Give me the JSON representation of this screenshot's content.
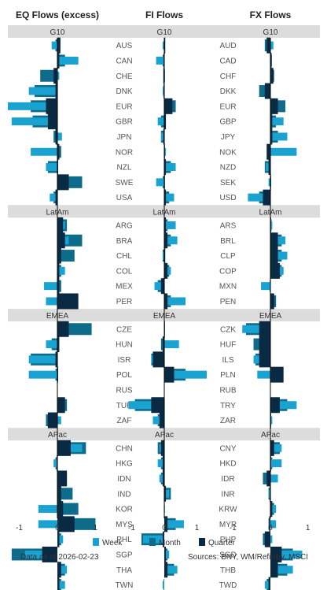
{
  "chart_data": {
    "type": "bar",
    "orientation": "horizontal",
    "panels": [
      {
        "title": "EQ Flows (excess)",
        "xlim": [
          -1.3,
          1.3
        ],
        "xticks": [
          -1,
          0,
          1
        ]
      },
      {
        "title": "FI Flows",
        "xlim": [
          -1.3,
          1.3
        ],
        "xticks": [
          -1,
          0,
          1
        ]
      },
      {
        "title": "FX Flows",
        "xlim": [
          -1.3,
          1.3
        ],
        "xticks": [
          -1,
          0,
          1
        ]
      }
    ],
    "series": [
      {
        "name": "Week",
        "color": "#1aa3d1"
      },
      {
        "name": "Month",
        "color": "#0f6b8a"
      },
      {
        "name": "Quarter",
        "color": "#0a2a44"
      }
    ],
    "regions": [
      {
        "name": "G10",
        "rows": [
          {
            "eq": "AUS",
            "fi": "AUS",
            "fx": "AUD",
            "values": [
              [
                -0.15,
                -0.05,
                0.08
              ],
              [
                -0.05,
                0.02,
                0.03
              ],
              [
                0.08,
                -0.15,
                -0.1
              ]
            ]
          },
          {
            "eq": "CAN",
            "fi": "CAN",
            "fx": "CAD",
            "values": [
              [
                0.55,
                0.2,
                0.05
              ],
              [
                -0.25,
                -0.05,
                -0.02
              ],
              [
                0.02,
                0.04,
                0.03
              ]
            ]
          },
          {
            "eq": "CHE",
            "fi": "CHE",
            "fx": "CHF",
            "values": [
              [
                0.05,
                -0.45,
                -0.1
              ],
              [
                0.0,
                0.02,
                -0.03
              ],
              [
                0.06,
                0.1,
                0.08
              ]
            ]
          },
          {
            "eq": "DNK",
            "fi": "DNK",
            "fx": "DKK",
            "values": [
              [
                -0.75,
                -0.6,
                -0.05
              ],
              [
                -0.05,
                -0.03,
                -0.02
              ],
              [
                -0.1,
                -0.3,
                -0.15
              ]
            ]
          },
          {
            "eq": "EUR",
            "fi": "EUR",
            "fx": "EUR",
            "values": [
              [
                -1.3,
                -0.7,
                -0.3
              ],
              [
                0.1,
                0.35,
                0.25
              ],
              [
                0.1,
                0.4,
                0.2
              ]
            ]
          },
          {
            "eq": "GBR",
            "fi": "GBR",
            "fx": "GBP",
            "values": [
              [
                -1.2,
                -0.65,
                -0.25
              ],
              [
                -0.2,
                -0.1,
                0.05
              ],
              [
                0.35,
                0.15,
                0.05
              ]
            ]
          },
          {
            "eq": "JPN",
            "fi": "JPN",
            "fx": "JPY",
            "values": [
              [
                0.12,
                -0.1,
                -0.05
              ],
              [
                -0.1,
                -0.1,
                -0.03
              ],
              [
                0.45,
                0.2,
                0.05
              ]
            ]
          },
          {
            "eq": "NOR",
            "fi": "NOR",
            "fx": "NOK",
            "values": [
              [
                -0.7,
                0.1,
                0.05
              ],
              [
                0.05,
                0.02,
                0.01
              ],
              [
                0.7,
                -0.05,
                -0.1
              ]
            ]
          },
          {
            "eq": "NZL",
            "fi": "NZL",
            "fx": "NZD",
            "values": [
              [
                -0.3,
                -0.25,
                0.02
              ],
              [
                0.35,
                0.2,
                0.05
              ],
              [
                -0.12,
                -0.15,
                -0.05
              ]
            ]
          },
          {
            "eq": "SWE",
            "fi": "SWE",
            "fx": "SEK",
            "values": [
              [
                0.2,
                0.65,
                0.3
              ],
              [
                -0.25,
                -0.05,
                0.02
              ],
              [
                -0.05,
                0.02,
                0.01
              ]
            ]
          },
          {
            "eq": "USA",
            "fi": "USA",
            "fx": "USD",
            "values": [
              [
                -0.2,
                -0.1,
                -0.05
              ],
              [
                0.3,
                0.15,
                0.05
              ],
              [
                -0.6,
                -0.3,
                -0.2
              ]
            ]
          }
        ]
      },
      {
        "name": "LatAm",
        "rows": [
          {
            "eq": "ARG",
            "fi": "ARG",
            "fx": "ARS",
            "values": [
              [
                0.2,
                0.25,
                0.15
              ],
              [
                0.35,
                0.1,
                0.05
              ],
              [
                0.05,
                0.03,
                0.02
              ]
            ]
          },
          {
            "eq": "BRA",
            "fi": "BRA",
            "fx": "BRL",
            "values": [
              [
                0.3,
                0.65,
                0.2
              ],
              [
                0.4,
                0.2,
                0.1
              ],
              [
                0.4,
                0.3,
                0.2
              ]
            ]
          },
          {
            "eq": "CHL",
            "fi": "CHL",
            "fx": "CLP",
            "values": [
              [
                0.05,
                0.45,
                0.1
              ],
              [
                -0.05,
                -0.05,
                0.03
              ],
              [
                0.45,
                0.3,
                0.2
              ]
            ]
          },
          {
            "eq": "COL",
            "fi": "COL",
            "fx": "COP",
            "values": [
              [
                0.2,
                0.1,
                0.05
              ],
              [
                0.2,
                0.15,
                0.1
              ],
              [
                0.35,
                0.3,
                0.25
              ]
            ]
          },
          {
            "eq": "MEX",
            "fi": "MEX",
            "fx": "MXN",
            "values": [
              [
                -0.35,
                0.1,
                0.05
              ],
              [
                -0.3,
                -0.2,
                -0.1
              ],
              [
                -0.25,
                -0.02,
                -0.01
              ]
            ]
          },
          {
            "eq": "PER",
            "fi": "PER",
            "fx": "PEN",
            "values": [
              [
                -0.3,
                0.5,
                0.55
              ],
              [
                0.65,
                0.2,
                0.1
              ],
              [
                0.05,
                0.15,
                0.1
              ]
            ]
          }
        ]
      },
      {
        "name": "EMEA",
        "rows": [
          {
            "eq": "CZE",
            "fi": "CZE",
            "fx": "CZK",
            "values": [
              [
                0.2,
                0.9,
                0.3
              ],
              [
                0.0,
                0.02,
                0.01
              ],
              [
                -0.75,
                -0.65,
                -0.3
              ]
            ]
          },
          {
            "eq": "HUN",
            "fi": "HUN",
            "fx": "HUF",
            "values": [
              [
                -0.3,
                -0.15,
                0.05
              ],
              [
                0.45,
                -0.1,
                -0.05
              ],
              [
                0.0,
                -0.45,
                -0.3
              ]
            ]
          },
          {
            "eq": "ISR",
            "fi": "ISR",
            "fx": "ILS",
            "values": [
              [
                -0.75,
                -0.7,
                -0.05
              ],
              [
                -0.4,
                -0.4,
                -0.35
              ],
              [
                -0.45,
                -0.4,
                -0.3
              ]
            ]
          },
          {
            "eq": "POL",
            "fi": "POL",
            "fx": "PLN",
            "values": [
              [
                -0.75,
                -0.05,
                0.02
              ],
              [
                1.3,
                0.65,
                0.3
              ],
              [
                -0.35,
                0.3,
                0.35
              ]
            ]
          },
          {
            "eq": "RUS",
            "fi": "RUS",
            "fx": "RUB",
            "values": [
              [
                0.0,
                0.0,
                0.0
              ],
              [
                0.0,
                0.0,
                0.0
              ],
              [
                0.0,
                0.0,
                0.0
              ]
            ]
          },
          {
            "eq": "TUR",
            "fi": "TUR",
            "fx": "TRY",
            "values": [
              [
                0.2,
                0.25,
                0.2
              ],
              [
                -1.1,
                -0.9,
                -0.4
              ],
              [
                0.7,
                0.45,
                0.25
              ]
            ]
          },
          {
            "eq": "ZAF",
            "fi": "ZAF",
            "fx": "ZAR",
            "values": [
              [
                0.1,
                -0.3,
                -0.25
              ],
              [
                -0.35,
                -0.2,
                -0.15
              ],
              [
                0.05,
                0.02,
                0.02
              ]
            ]
          }
        ]
      },
      {
        "name": "APac",
        "rows": [
          {
            "eq": "CHN",
            "fi": "CHN",
            "fx": "CNY",
            "values": [
              [
                0.65,
                0.75,
                0.35
              ],
              [
                -0.15,
                -0.2,
                -0.1
              ],
              [
                0.3,
                0.25,
                0.1
              ]
            ]
          },
          {
            "eq": "HKG",
            "fi": "HKG",
            "fx": "HKD",
            "values": [
              [
                -0.1,
                -0.05,
                -0.02
              ],
              [
                -0.2,
                -0.1,
                -0.05
              ],
              [
                0.3,
                0.05,
                0.02
              ]
            ]
          },
          {
            "eq": "IDN",
            "fi": "IDN",
            "fx": "IDR",
            "values": [
              [
                0.1,
                0.25,
                0.25
              ],
              [
                -0.15,
                -0.1,
                -0.05
              ],
              [
                0.2,
                -0.2,
                -0.1
              ]
            ]
          },
          {
            "eq": "IND",
            "fi": "IND",
            "fx": "INR",
            "values": [
              [
                0.1,
                0.4,
                0.1
              ],
              [
                0.15,
                0.2,
                0.05
              ],
              [
                -0.05,
                -0.05,
                -0.02
              ]
            ]
          },
          {
            "eq": "KOR",
            "fi": "KOR",
            "fx": "KRW",
            "values": [
              [
                -0.5,
                0.55,
                0.15
              ],
              [
                0.02,
                0.0,
                0.0
              ],
              [
                0.15,
                0.1,
                0.05
              ]
            ]
          },
          {
            "eq": "MYS",
            "fi": "MYS",
            "fx": "MYR",
            "values": [
              [
                -0.5,
                1.0,
                0.45
              ],
              [
                0.6,
                0.35,
                0.1
              ],
              [
                0.15,
                -0.05,
                -0.03
              ]
            ]
          },
          {
            "eq": "PHL",
            "fi": "PHL",
            "fx": "PHP",
            "values": [
              [
                0.15,
                0.1,
                0.05
              ],
              [
                -0.65,
                -0.7,
                -0.05
              ],
              [
                0.05,
                -0.2,
                -0.15
              ]
            ]
          },
          {
            "eq": "SGP",
            "fi": "SGP",
            "fx": "SGD",
            "values": [
              [
                -0.85,
                -1.2,
                -0.4
              ],
              [
                0.15,
                0.1,
                0.05
              ],
              [
                0.85,
                0.6,
                0.3
              ]
            ]
          },
          {
            "eq": "THA",
            "fi": "THA",
            "fx": "THB",
            "values": [
              [
                0.25,
                0.2,
                0.1
              ],
              [
                0.4,
                0.3,
                0.1
              ],
              [
                0.6,
                0.45,
                0.2
              ]
            ]
          },
          {
            "eq": "TWN",
            "fi": "TWN",
            "fx": "TWD",
            "values": [
              [
                0.2,
                0.1,
                0.05
              ],
              [
                -0.05,
                -0.02,
                0.0
              ],
              [
                -0.15,
                -0.1,
                -0.05
              ]
            ]
          }
        ]
      }
    ],
    "footer": {
      "left": "Data as of 2026-02-23",
      "right": "Sources:  BNY, WM/Refinitiv, MSCI"
    }
  }
}
